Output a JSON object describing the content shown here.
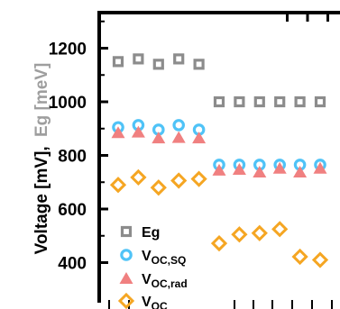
{
  "chart_data": {
    "type": "scatter",
    "ylabel_parts": {
      "voltage": "Voltage [mV],",
      "eg": "Eg [meV]"
    },
    "ylim": [
      300,
      1350
    ],
    "yticks": [
      400,
      600,
      800,
      1000,
      1200
    ],
    "x": [
      1,
      2,
      3,
      4,
      5,
      6,
      7,
      8,
      9,
      10,
      11
    ],
    "series": [
      {
        "name": "Eg",
        "marker": "square",
        "color": "#8c8c8c",
        "values": [
          1150,
          1160,
          1140,
          1160,
          1140,
          1000,
          1000,
          1000,
          1000,
          1000,
          1000
        ]
      },
      {
        "name": "V_OC,SQ",
        "marker": "circle",
        "color": "#4fc3f7",
        "values": [
          905,
          913,
          896,
          913,
          896,
          765,
          765,
          765,
          765,
          765,
          765
        ]
      },
      {
        "name": "V_OC,rad",
        "marker": "triangle",
        "color": "#f08080",
        "values": [
          885,
          887,
          865,
          867,
          865,
          745,
          748,
          738,
          752,
          738,
          752
        ]
      },
      {
        "name": "V_OC",
        "marker": "diamond",
        "color": "#f5a623",
        "values": [
          690,
          718,
          680,
          706,
          712,
          472,
          505,
          510,
          525,
          422,
          410
        ]
      }
    ],
    "legend": {
      "position": "bottom-left",
      "entries": [
        {
          "main": "Eg",
          "sub": ""
        },
        {
          "main": "V",
          "sub": "OC,SQ"
        },
        {
          "main": "V",
          "sub": "OC,rad"
        },
        {
          "main": "V",
          "sub": "OC"
        }
      ]
    }
  }
}
